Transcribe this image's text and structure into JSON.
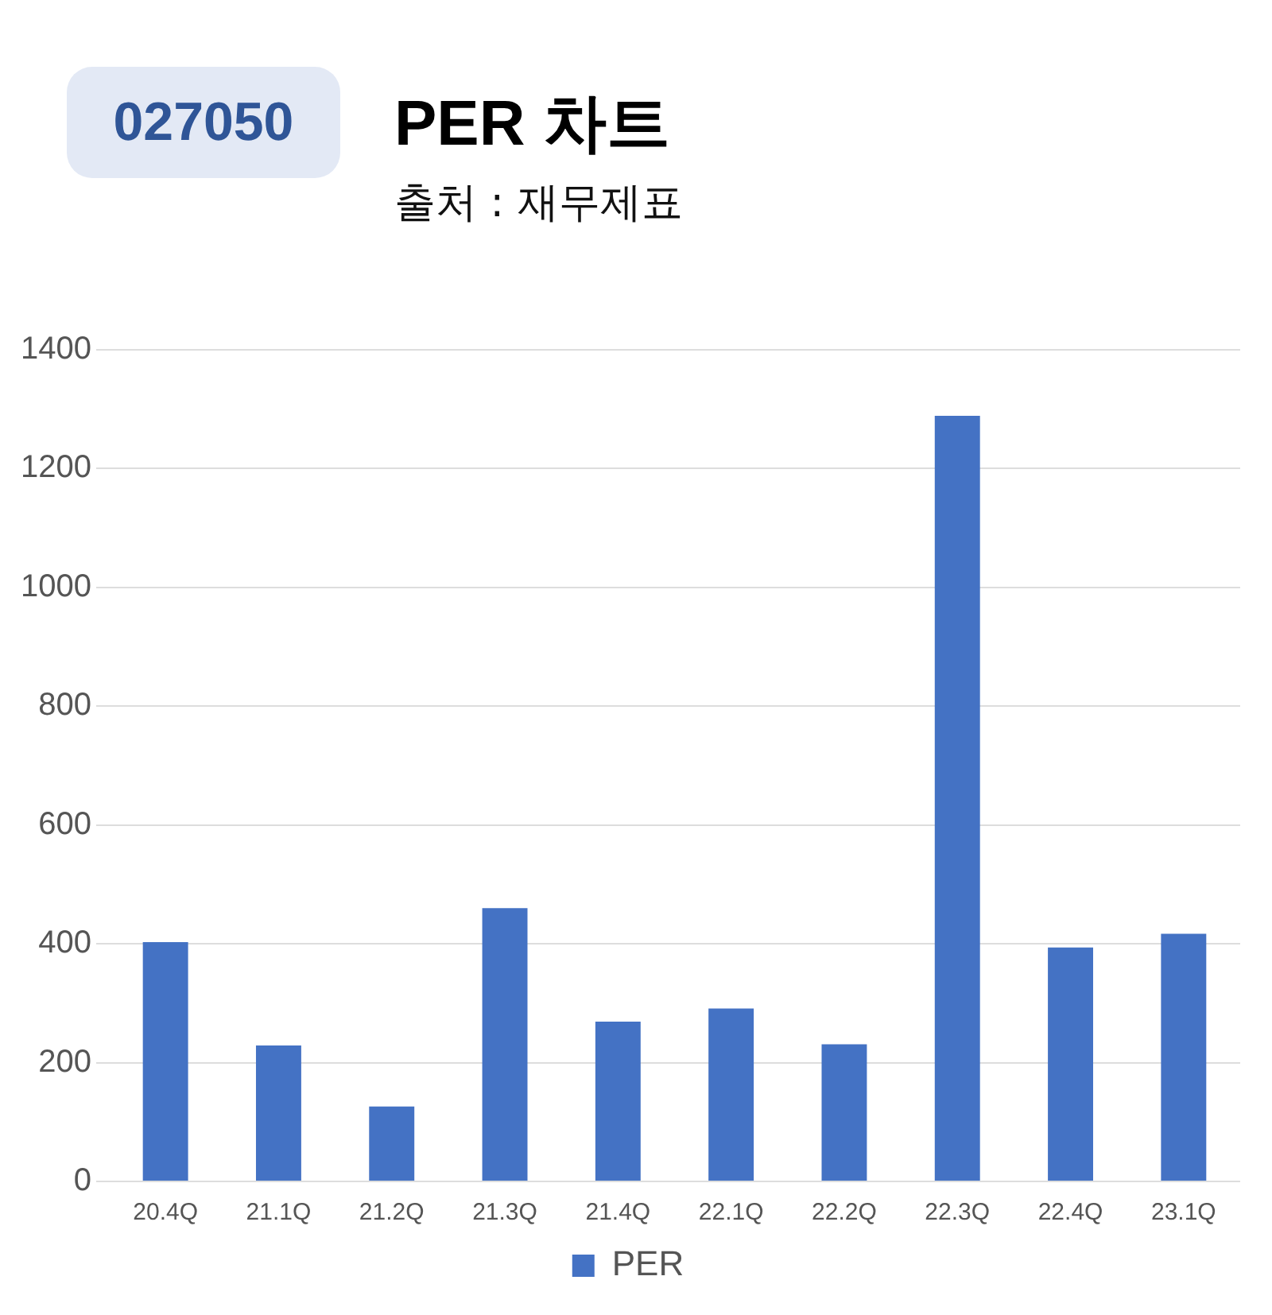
{
  "chart_data": {
    "type": "bar",
    "title": "PER 차트",
    "subtitle": "출처 : 재무제표",
    "annotations": [
      "027050"
    ],
    "categories": [
      "20.4Q",
      "21.1Q",
      "21.2Q",
      "21.3Q",
      "21.4Q",
      "22.1Q",
      "22.2Q",
      "22.3Q",
      "22.4Q",
      "23.1Q"
    ],
    "series": [
      {
        "name": "PER",
        "color": "#4472c4",
        "values": [
          403,
          229,
          126,
          460,
          269,
          291,
          231,
          1289,
          394,
          417
        ]
      }
    ],
    "ylim": [
      0,
      1400
    ],
    "yticks": [
      0,
      200,
      400,
      600,
      800,
      1000,
      1200,
      1400
    ],
    "grid": "y",
    "legend": "bottom"
  }
}
